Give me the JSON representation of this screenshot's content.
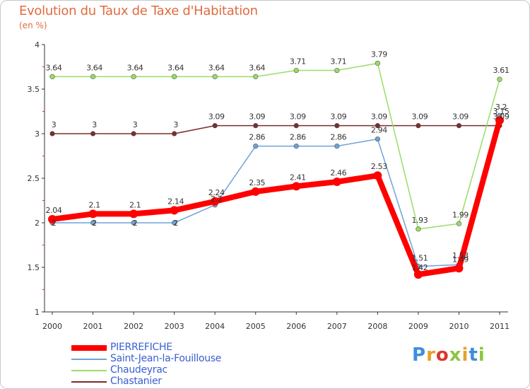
{
  "header": {
    "title": "Evolution du Taux de Taxe d'Habitation",
    "subtitle": "(en %)"
  },
  "logo": {
    "text": "Proxiti",
    "colors": [
      "#3e8ee0",
      "#e8a02c",
      "#d9392e",
      "#8cc63f",
      "#e8a02c",
      "#3e8ee0",
      "#8cc63f"
    ]
  },
  "chart_data": {
    "type": "line",
    "categories": [
      "2000",
      "2001",
      "2002",
      "2003",
      "2004",
      "2005",
      "2006",
      "2007",
      "2008",
      "2009",
      "2010",
      "2011"
    ],
    "ylim": [
      1,
      4
    ],
    "yticks": [
      1,
      1.5,
      2,
      2.5,
      3,
      3.5,
      4
    ],
    "grid": false,
    "legend_position": "bottom-left",
    "series": [
      {
        "name": "PIERREFICHE",
        "color": "#ff0000",
        "values": [
          2.04,
          2.1,
          2.1,
          2.14,
          2.24,
          2.35,
          2.41,
          2.46,
          2.53,
          1.42,
          1.49,
          3.15
        ],
        "labels": [
          "2.04",
          "2.1",
          "2.1",
          "2.14",
          "2.24",
          "2.35",
          "2.41",
          "2.46",
          "2.53",
          "1.42",
          "1.49",
          "3.15"
        ]
      },
      {
        "name": "Saint-Jean-la-Fouillouse",
        "color": "#6ea3d8",
        "values": [
          2,
          2,
          2,
          2,
          2.2,
          2.86,
          2.86,
          2.86,
          2.94,
          1.51,
          1.53,
          3.2
        ],
        "labels": [
          "2",
          "2",
          "2",
          "2",
          "2.2",
          "2.86",
          "2.86",
          "2.86",
          "2.94",
          "1.51",
          "1.53",
          "3.2"
        ]
      },
      {
        "name": "Chaudeyrac",
        "color": "#99dd66",
        "values": [
          3.64,
          3.64,
          3.64,
          3.64,
          3.64,
          3.64,
          3.71,
          3.71,
          3.79,
          1.93,
          1.99,
          3.61
        ],
        "labels": [
          "3.64",
          "3.64",
          "3.64",
          "3.64",
          "3.64",
          "3.64",
          "3.71",
          "3.71",
          "3.79",
          "1.93",
          "1.99",
          "3.61"
        ]
      },
      {
        "name": "Chastanier",
        "color": "#7a2e2e",
        "values": [
          3,
          3,
          3,
          3,
          3.09,
          3.09,
          3.09,
          3.09,
          3.09,
          3.09,
          3.09,
          3.09
        ],
        "labels": [
          "3",
          "3",
          "3",
          "3",
          "3.09",
          "3.09",
          "3.09",
          "3.09",
          "3.09",
          "3.09",
          "3.09",
          "3.09"
        ]
      }
    ]
  }
}
